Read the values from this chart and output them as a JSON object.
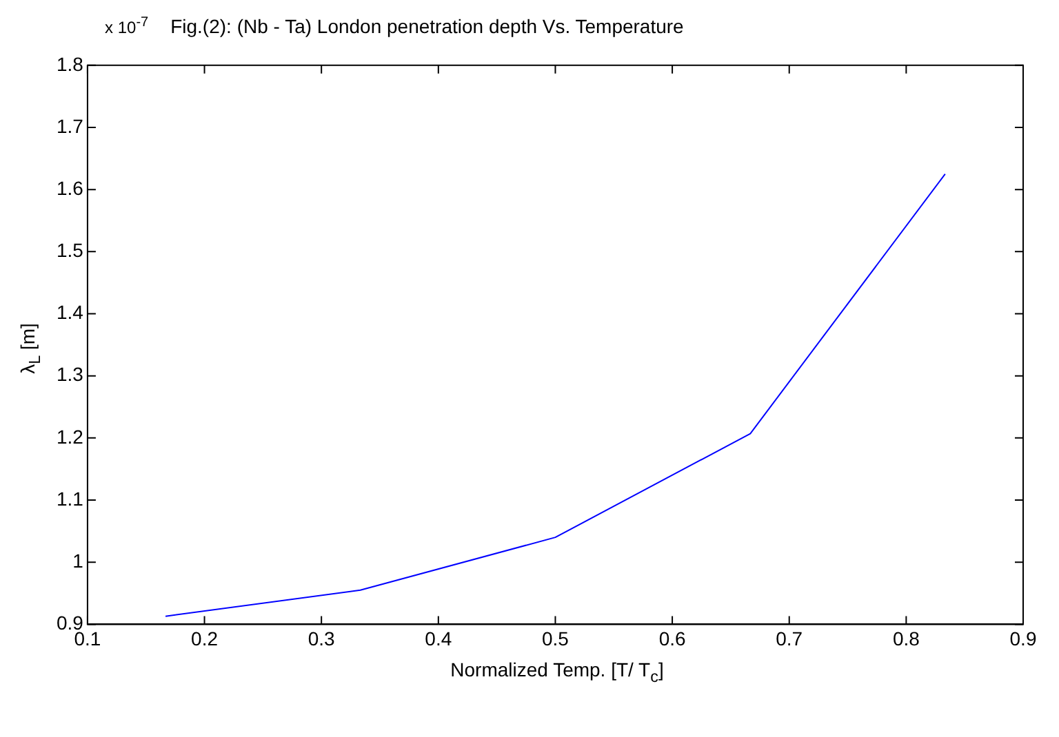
{
  "chart_data": {
    "type": "line",
    "title": "Fig.(2): (Nb - Ta) London penetration depth Vs. Temperature",
    "xlabel": "Normalized Temp. [T/ T$_{c}$]",
    "ylabel": "λ$_{L}$ [m]",
    "annotations": [
      "x 10$^{-7}$"
    ],
    "x": [
      0.1667,
      0.3333,
      0.5,
      0.6667,
      0.8333
    ],
    "series": [
      {
        "color": "#0000ff",
        "values": [
          0.913,
          0.955,
          1.04,
          1.207,
          1.625
        ]
      }
    ],
    "xlim": [
      0.1,
      0.9
    ],
    "xticks": [
      0.1,
      0.2,
      0.3,
      0.4,
      0.5,
      0.6,
      0.7,
      0.8,
      0.9
    ],
    "ylim": [
      0.9,
      1.8
    ],
    "yticks": [
      0.9,
      1,
      1.1,
      1.2,
      1.3,
      1.4,
      1.5,
      1.6,
      1.7,
      1.8
    ],
    "grid": false,
    "legend": false,
    "marker": "none",
    "line_style": "solid"
  }
}
